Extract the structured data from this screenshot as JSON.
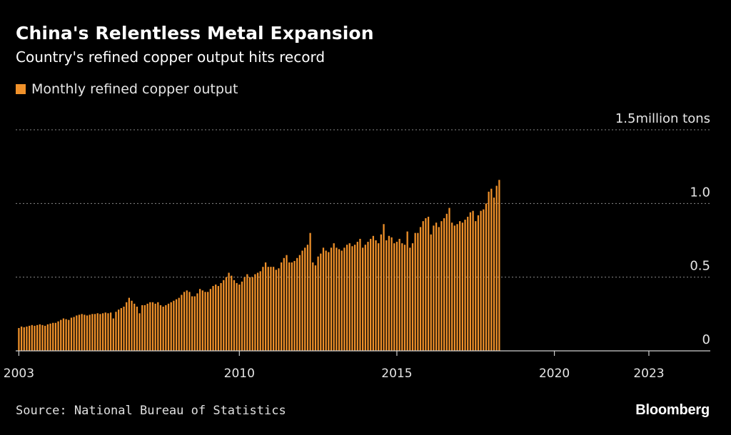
{
  "title": "China's Relentless Metal Expansion",
  "subtitle": "Country's refined copper output hits record",
  "legend_label": "Monthly refined copper output",
  "source": "Source: National Bureau of Statistics",
  "brand": "Bloomberg",
  "colors": {
    "background": "#000000",
    "bar": "#f0912a",
    "grid": "#8a8a8a",
    "text": "#ffffff"
  },
  "chart_data": {
    "type": "bar",
    "title": "China's Relentless Metal Expansion",
    "subtitle": "Country's refined copper output hits record",
    "ylabel": "million tons",
    "ylim": [
      0,
      1.5
    ],
    "yticks": [
      {
        "value": 0,
        "label": "0"
      },
      {
        "value": 0.5,
        "label": "0.5"
      },
      {
        "value": 1.0,
        "label": "1.0"
      },
      {
        "value": 1.5,
        "label": "1.5million tons"
      }
    ],
    "xticks": [
      {
        "value": 2003.0,
        "label": "2003"
      },
      {
        "value": 2010.0,
        "label": "2010"
      },
      {
        "value": 2015.0,
        "label": "2015"
      },
      {
        "value": 2020.0,
        "label": "2020"
      },
      {
        "value": 2023.0,
        "label": "2023"
      }
    ],
    "xlim": [
      2002.9,
      2024.95
    ],
    "series": [
      {
        "name": "Monthly refined copper output",
        "start": 2003.0,
        "step_months": 1,
        "values": [
          0.155,
          0.165,
          0.16,
          0.165,
          0.17,
          0.175,
          0.17,
          0.175,
          0.18,
          0.175,
          0.17,
          0.18,
          0.185,
          0.19,
          0.19,
          0.2,
          0.21,
          0.22,
          0.215,
          0.21,
          0.225,
          0.23,
          0.24,
          0.245,
          0.25,
          0.245,
          0.24,
          0.245,
          0.25,
          0.25,
          0.255,
          0.25,
          0.255,
          0.26,
          0.255,
          0.26,
          0.22,
          0.265,
          0.28,
          0.29,
          0.3,
          0.33,
          0.36,
          0.34,
          0.32,
          0.3,
          0.255,
          0.31,
          0.31,
          0.32,
          0.33,
          0.33,
          0.32,
          0.33,
          0.31,
          0.3,
          0.31,
          0.32,
          0.33,
          0.34,
          0.35,
          0.36,
          0.38,
          0.4,
          0.41,
          0.4,
          0.37,
          0.37,
          0.39,
          0.42,
          0.41,
          0.4,
          0.4,
          0.42,
          0.44,
          0.45,
          0.44,
          0.46,
          0.48,
          0.5,
          0.53,
          0.51,
          0.48,
          0.46,
          0.45,
          0.47,
          0.5,
          0.52,
          0.5,
          0.5,
          0.52,
          0.53,
          0.54,
          0.57,
          0.6,
          0.57,
          0.57,
          0.57,
          0.55,
          0.56,
          0.6,
          0.63,
          0.65,
          0.6,
          0.6,
          0.61,
          0.63,
          0.65,
          0.68,
          0.7,
          0.72,
          0.8,
          0.6,
          0.58,
          0.64,
          0.66,
          0.7,
          0.68,
          0.67,
          0.7,
          0.73,
          0.7,
          0.69,
          0.68,
          0.7,
          0.72,
          0.73,
          0.71,
          0.72,
          0.74,
          0.76,
          0.7,
          0.72,
          0.74,
          0.76,
          0.78,
          0.75,
          0.73,
          0.79,
          0.86,
          0.75,
          0.78,
          0.77,
          0.73,
          0.74,
          0.76,
          0.73,
          0.72,
          0.81,
          0.7,
          0.73,
          0.8,
          0.8,
          0.84,
          0.88,
          0.9,
          0.91,
          0.79,
          0.85,
          0.87,
          0.84,
          0.88,
          0.9,
          0.93,
          0.97,
          0.87,
          0.85,
          0.86,
          0.88,
          0.87,
          0.89,
          0.91,
          0.94,
          0.95,
          0.88,
          0.92,
          0.95,
          0.96,
          1.0,
          1.08,
          1.1,
          1.04,
          1.12,
          1.16
        ]
      }
    ]
  }
}
